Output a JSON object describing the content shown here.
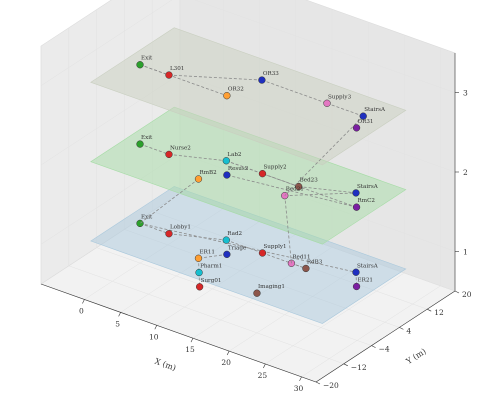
{
  "chart_data": {
    "type": "scatter",
    "projection": "3d",
    "title": "",
    "xlabel": "X (m)",
    "ylabel": "Y (m)",
    "zlabel": "",
    "xlim": [
      -6,
      32
    ],
    "ylim": [
      -20,
      20
    ],
    "zlim": [
      0.5,
      3.5
    ],
    "x_ticks": [
      0,
      5,
      10,
      15,
      20,
      25,
      30
    ],
    "y_ticks": [
      -20,
      -12,
      -4,
      4,
      12,
      20
    ],
    "z_ticks": [
      1,
      2,
      3
    ],
    "grid": true,
    "planes": [
      {
        "z": 1,
        "color": "#a9c8dc"
      },
      {
        "z": 2,
        "color": "#a6dca6"
      },
      {
        "z": 3,
        "color": "#c9cfc0"
      }
    ],
    "nodes": [
      {
        "label": "Exit",
        "x": 0,
        "y": -4,
        "z": 3,
        "color": "#2ca02c"
      },
      {
        "label": "L301",
        "x": 4,
        "y": -4,
        "z": 3,
        "color": "#d62728"
      },
      {
        "label": "OR33",
        "x": 13,
        "y": 4,
        "z": 3,
        "color": "#1f2fbf"
      },
      {
        "label": "Supply3",
        "x": 22,
        "y": 4,
        "z": 3,
        "color": "#e377c2"
      },
      {
        "label": "StairsA",
        "x": 27,
        "y": 4,
        "z": 3,
        "color": "#1f2fbf"
      },
      {
        "label": "OR31",
        "x": 28,
        "y": 0,
        "z": 3,
        "color": "#7b1fa2"
      },
      {
        "label": "OR32",
        "x": 12,
        "y": -4,
        "z": 3,
        "color": "#ff9f33"
      },
      {
        "label": "Exit",
        "x": 0,
        "y": -4,
        "z": 2,
        "color": "#2ca02c"
      },
      {
        "label": "Nurse2",
        "x": 4,
        "y": -4,
        "z": 2,
        "color": "#d62728"
      },
      {
        "label": "Lab2",
        "x": 10,
        "y": 0,
        "z": 2,
        "color": "#17becf"
      },
      {
        "label": "Supply2",
        "x": 15,
        "y": 0,
        "z": 2,
        "color": "#d62728"
      },
      {
        "label": "Bed23",
        "x": 20,
        "y": 0,
        "z": 2,
        "color": "#8c564b"
      },
      {
        "label": "Bed21",
        "x": 20,
        "y": -4,
        "z": 2,
        "color": "#e377c2"
      },
      {
        "label": "StairsA",
        "x": 26,
        "y": 4,
        "z": 2,
        "color": "#1f2fbf"
      },
      {
        "label": "RmC2",
        "x": 28,
        "y": 0,
        "z": 2,
        "color": "#7b1fa2"
      },
      {
        "label": "Resus2",
        "x": 12,
        "y": -4,
        "z": 2,
        "color": "#1f2fbf"
      },
      {
        "label": "RmB2",
        "x": 10,
        "y": -8,
        "z": 2,
        "color": "#ff9f33"
      },
      {
        "label": "Exit",
        "x": 0,
        "y": -4,
        "z": 1,
        "color": "#2ca02c"
      },
      {
        "label": "Lobby1",
        "x": 4,
        "y": -4,
        "z": 1,
        "color": "#d62728"
      },
      {
        "label": "Rad2",
        "x": 10,
        "y": 0,
        "z": 1,
        "color": "#17becf"
      },
      {
        "label": "Supply1",
        "x": 15,
        "y": 0,
        "z": 1,
        "color": "#d62728"
      },
      {
        "label": "Bed11",
        "x": 19,
        "y": 0,
        "z": 1,
        "color": "#e377c2"
      },
      {
        "label": "RdB3",
        "x": 21,
        "y": 0,
        "z": 1,
        "color": "#8c564b"
      },
      {
        "label": "StairsA",
        "x": 26,
        "y": 4,
        "z": 1,
        "color": "#1f2fbf"
      },
      {
        "label": "ER21",
        "x": 28,
        "y": 0,
        "z": 1,
        "color": "#7b1fa2"
      },
      {
        "label": "Triage",
        "x": 12,
        "y": -4,
        "z": 1,
        "color": "#1f2fbf"
      },
      {
        "label": "ER11",
        "x": 10,
        "y": -8,
        "z": 1,
        "color": "#ff9f33"
      },
      {
        "label": "Pharm1",
        "x": 12,
        "y": -12,
        "z": 1,
        "color": "#17becf"
      },
      {
        "label": "Surg01",
        "x": 14,
        "y": -16,
        "z": 1,
        "color": "#d62728"
      },
      {
        "label": "Imaging1",
        "x": 20,
        "y": -12,
        "z": 1,
        "color": "#8c564b"
      }
    ],
    "edges": [
      [
        0,
        1
      ],
      [
        1,
        2
      ],
      [
        2,
        3
      ],
      [
        3,
        4
      ],
      [
        0,
        6
      ],
      [
        7,
        8
      ],
      [
        8,
        9
      ],
      [
        9,
        10
      ],
      [
        10,
        11
      ],
      [
        11,
        13
      ],
      [
        9,
        14
      ],
      [
        14,
        15
      ],
      [
        12,
        13
      ],
      [
        16,
        17
      ],
      [
        17,
        18
      ],
      [
        18,
        19
      ],
      [
        19,
        20
      ],
      [
        20,
        22
      ],
      [
        17,
        23
      ],
      [
        23,
        24
      ],
      [
        21,
        22
      ],
      [
        25,
        26
      ],
      [
        26,
        27
      ],
      [
        27,
        28
      ],
      [
        4,
        12
      ],
      [
        12,
        21
      ]
    ]
  }
}
